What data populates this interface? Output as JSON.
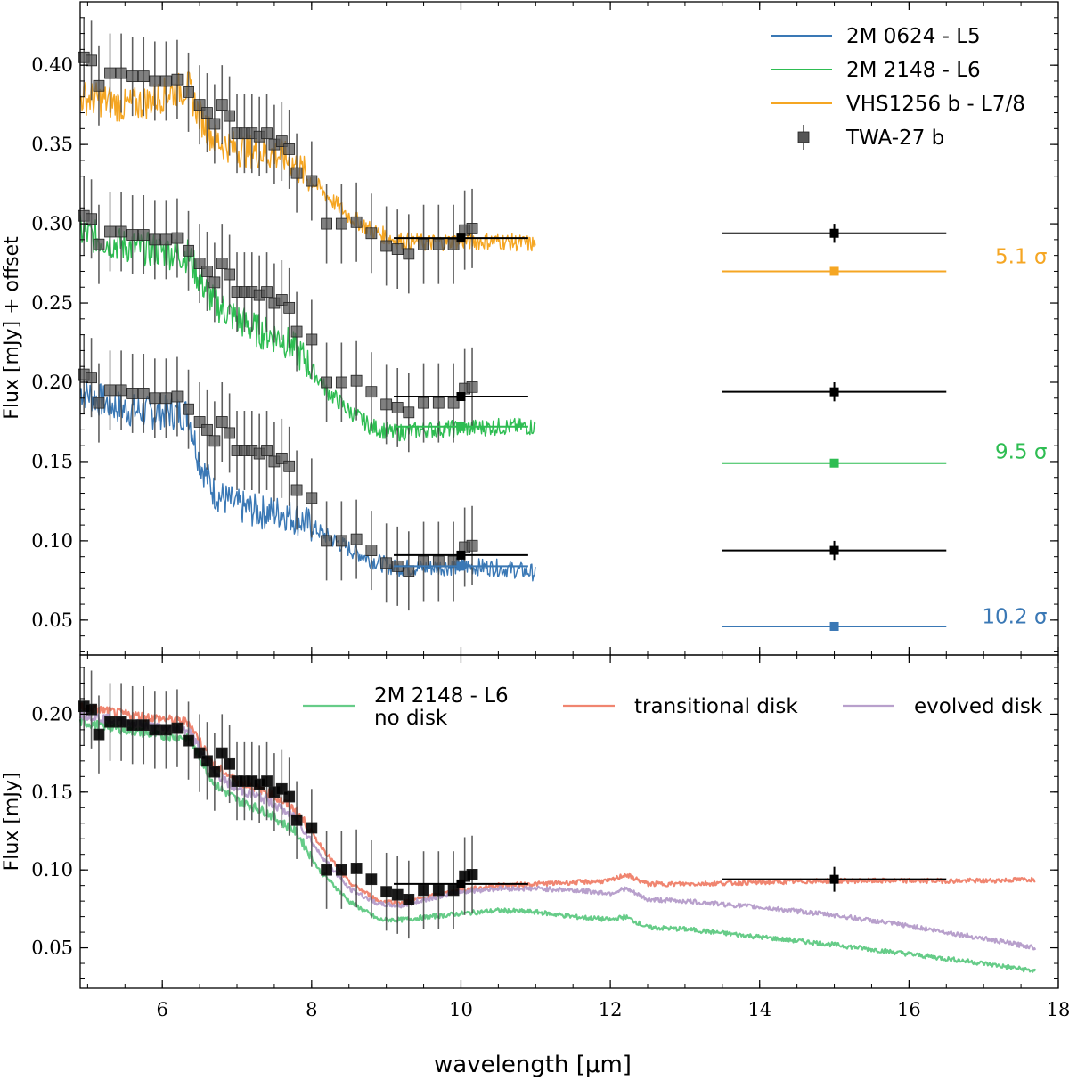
{
  "chart_data": [
    {
      "type": "line",
      "panel": "top",
      "ylabel": "Flux [mJy] + offset",
      "xlim": [
        4.9,
        18
      ],
      "ylim": [
        0.028,
        0.44
      ],
      "yticks": [
        "0.05",
        "0.10",
        "0.15",
        "0.20",
        "0.25",
        "0.30",
        "0.35",
        "0.40"
      ],
      "grid": false,
      "legend_position": "top-right",
      "colors": {
        "blue": "#3a78b5",
        "green": "#2ebd52",
        "orange": "#f5a623",
        "black": "#000000",
        "gray": "#555555"
      },
      "series": [
        {
          "name": "2M 0624 - L5",
          "color": "#3a78b5",
          "x": [
            4.9,
            5.2,
            5.5,
            5.8,
            6.1,
            6.35,
            6.5,
            6.7,
            7.0,
            7.3,
            7.6,
            7.9,
            8.2,
            8.5,
            8.8,
            9.1,
            9.5,
            10.0,
            10.5,
            11.0
          ],
          "y": [
            0.195,
            0.188,
            0.183,
            0.181,
            0.181,
            0.18,
            0.15,
            0.13,
            0.122,
            0.118,
            0.118,
            0.112,
            0.103,
            0.095,
            0.088,
            0.083,
            0.083,
            0.084,
            0.083,
            0.08
          ]
        },
        {
          "name": "2M 2148 - L6",
          "color": "#2ebd52",
          "x": [
            4.9,
            5.2,
            5.5,
            5.8,
            6.1,
            6.35,
            6.5,
            6.7,
            7.0,
            7.3,
            7.6,
            7.9,
            8.2,
            8.5,
            8.8,
            9.1,
            9.5,
            10.0,
            10.5,
            11.0
          ],
          "y": [
            0.295,
            0.29,
            0.286,
            0.284,
            0.282,
            0.28,
            0.265,
            0.25,
            0.24,
            0.232,
            0.228,
            0.215,
            0.195,
            0.182,
            0.172,
            0.168,
            0.17,
            0.171,
            0.172,
            0.172
          ]
        },
        {
          "name": "VHS1256 b - L7/8",
          "color": "#f5a623",
          "x": [
            4.9,
            5.2,
            5.5,
            5.8,
            6.1,
            6.35,
            6.5,
            6.7,
            7.0,
            7.3,
            7.6,
            7.9,
            8.2,
            8.5,
            8.8,
            9.1,
            9.5,
            10.0,
            10.5,
            11.0
          ],
          "y": [
            0.38,
            0.378,
            0.374,
            0.377,
            0.383,
            0.386,
            0.368,
            0.353,
            0.347,
            0.345,
            0.343,
            0.332,
            0.318,
            0.305,
            0.296,
            0.29,
            0.288,
            0.289,
            0.289,
            0.287
          ]
        },
        {
          "name": "TWA-27 b",
          "color": "#555555",
          "marker": "square",
          "offsets": [
            0.2,
            0.1,
            0.0
          ],
          "x": [
            4.95,
            5.05,
            5.15,
            5.3,
            5.45,
            5.6,
            5.75,
            5.9,
            6.05,
            6.2,
            6.35,
            6.5,
            6.6,
            6.7,
            6.8,
            6.9,
            7.0,
            7.1,
            7.2,
            7.3,
            7.4,
            7.5,
            7.6,
            7.7,
            7.8,
            8.0,
            8.2,
            8.4,
            8.6,
            8.8,
            9.0,
            9.15,
            9.3,
            9.5,
            9.7,
            9.9,
            10.05,
            10.15
          ],
          "y": [
            0.205,
            0.203,
            0.187,
            0.195,
            0.195,
            0.193,
            0.193,
            0.19,
            0.19,
            0.191,
            0.183,
            0.175,
            0.17,
            0.163,
            0.175,
            0.168,
            0.157,
            0.157,
            0.157,
            0.155,
            0.157,
            0.15,
            0.152,
            0.147,
            0.132,
            0.127,
            0.1,
            0.1,
            0.101,
            0.094,
            0.086,
            0.084,
            0.081,
            0.087,
            0.087,
            0.087,
            0.096,
            0.097
          ],
          "yerr": 0.025
        }
      ],
      "photometry": [
        {
          "label": "TWA-27 b (offset 0.2)",
          "x": 10.0,
          "xerr": 0.9,
          "y": 0.291,
          "color": "#000000"
        },
        {
          "label": "TWA-27 b (offset 0.1)",
          "x": 10.0,
          "xerr": 0.9,
          "y": 0.191,
          "color": "#000000"
        },
        {
          "label": "TWA-27 b (offset 0)",
          "x": 10.0,
          "xerr": 0.9,
          "y": 0.091,
          "color": "#000000"
        },
        {
          "label": "2M 2148 - L6",
          "x": 10.0,
          "xerr": 0.9,
          "y": 0.172,
          "color": "#2ebd52"
        },
        {
          "label": "2M 0624 - L5",
          "x": 10.0,
          "xerr": 0.9,
          "y": 0.084,
          "color": "#3a78b5"
        },
        {
          "label": "TWA-27 b 15um (offset 0.2)",
          "x": 15.0,
          "xerr": 1.5,
          "y": 0.294,
          "yerr": 0.006,
          "color": "#000000"
        },
        {
          "label": "VHS1256 b 15um",
          "x": 15.0,
          "xerr": 1.5,
          "y": 0.27,
          "color": "#f5a623"
        },
        {
          "label": "TWA-27 b 15um (offset 0.1)",
          "x": 15.0,
          "xerr": 1.5,
          "y": 0.194,
          "yerr": 0.006,
          "color": "#000000"
        },
        {
          "label": "2M 2148 15um",
          "x": 15.0,
          "xerr": 1.5,
          "y": 0.149,
          "color": "#2ebd52"
        },
        {
          "label": "TWA-27 b 15um (offset 0)",
          "x": 15.0,
          "xerr": 1.5,
          "y": 0.094,
          "yerr": 0.006,
          "color": "#000000"
        },
        {
          "label": "2M 0624 15um",
          "x": 15.0,
          "xerr": 1.5,
          "y": 0.046,
          "color": "#3a78b5"
        }
      ],
      "annotations": [
        {
          "text": "5.1 σ",
          "x": 17.85,
          "y": 0.275,
          "color": "#f5a623"
        },
        {
          "text": "9.5 σ",
          "x": 17.85,
          "y": 0.152,
          "color": "#2ebd52"
        },
        {
          "text": "10.2 σ",
          "x": 17.85,
          "y": 0.048,
          "color": "#3a78b5"
        }
      ]
    },
    {
      "type": "line",
      "panel": "bottom",
      "xlabel": "wavelength [μm]",
      "ylabel": "Flux [mJy]",
      "xlim": [
        4.9,
        18
      ],
      "ylim": [
        0.024,
        0.238
      ],
      "xticks": [
        "6",
        "8",
        "10",
        "12",
        "14",
        "16",
        "18"
      ],
      "yticks": [
        "0.05",
        "0.10",
        "0.15",
        "0.20"
      ],
      "grid": false,
      "legend_position": "top",
      "series": [
        {
          "name": "2M 2148 - L6",
          "name_line2": "no disk",
          "color": "#66cc88",
          "x": [
            4.9,
            5.5,
            6.0,
            6.35,
            6.7,
            7.0,
            7.4,
            7.8,
            8.1,
            8.5,
            8.9,
            9.2,
            9.6,
            10.0,
            10.5,
            11.0,
            11.5,
            12.0,
            12.2,
            12.5,
            13.0,
            14.0,
            15.0,
            16.0,
            17.0,
            17.7
          ],
          "y": [
            0.195,
            0.19,
            0.186,
            0.185,
            0.155,
            0.145,
            0.137,
            0.124,
            0.1,
            0.08,
            0.068,
            0.068,
            0.07,
            0.072,
            0.074,
            0.073,
            0.07,
            0.068,
            0.07,
            0.063,
            0.062,
            0.057,
            0.052,
            0.046,
            0.04,
            0.035
          ]
        },
        {
          "name": "transitional disk",
          "color": "#f08570",
          "x": [
            4.9,
            5.5,
            6.0,
            6.35,
            6.7,
            7.0,
            7.4,
            7.8,
            8.1,
            8.5,
            8.9,
            9.2,
            9.6,
            10.0,
            10.5,
            11.0,
            11.5,
            12.0,
            12.2,
            12.5,
            13.0,
            14.0,
            15.0,
            16.0,
            17.0,
            17.7
          ],
          "y": [
            0.205,
            0.2,
            0.197,
            0.195,
            0.167,
            0.157,
            0.15,
            0.138,
            0.117,
            0.092,
            0.08,
            0.079,
            0.083,
            0.087,
            0.09,
            0.091,
            0.092,
            0.093,
            0.097,
            0.091,
            0.091,
            0.092,
            0.093,
            0.093,
            0.093,
            0.094
          ]
        },
        {
          "name": "evolved disk",
          "color": "#b8a0cc",
          "x": [
            4.9,
            5.5,
            6.0,
            6.35,
            6.7,
            7.0,
            7.4,
            7.8,
            8.1,
            8.5,
            8.9,
            9.2,
            9.6,
            10.0,
            10.5,
            11.0,
            11.5,
            12.0,
            12.2,
            12.5,
            13.0,
            14.0,
            15.0,
            16.0,
            17.0,
            17.7
          ],
          "y": [
            0.2,
            0.195,
            0.191,
            0.19,
            0.162,
            0.152,
            0.145,
            0.133,
            0.111,
            0.088,
            0.078,
            0.077,
            0.082,
            0.086,
            0.088,
            0.088,
            0.087,
            0.085,
            0.088,
            0.081,
            0.08,
            0.076,
            0.071,
            0.064,
            0.056,
            0.05
          ]
        },
        {
          "name": "TWA-27 b",
          "color": "#000000",
          "marker": "square",
          "x": [
            4.95,
            5.05,
            5.15,
            5.3,
            5.45,
            5.6,
            5.75,
            5.9,
            6.05,
            6.2,
            6.35,
            6.5,
            6.6,
            6.7,
            6.8,
            6.9,
            7.0,
            7.1,
            7.2,
            7.3,
            7.4,
            7.5,
            7.6,
            7.7,
            7.8,
            8.0,
            8.2,
            8.4,
            8.6,
            8.8,
            9.0,
            9.15,
            9.3,
            9.5,
            9.7,
            9.9,
            10.05,
            10.15
          ],
          "y": [
            0.205,
            0.203,
            0.187,
            0.195,
            0.195,
            0.193,
            0.193,
            0.19,
            0.19,
            0.191,
            0.183,
            0.175,
            0.17,
            0.163,
            0.175,
            0.168,
            0.157,
            0.157,
            0.157,
            0.155,
            0.157,
            0.15,
            0.152,
            0.147,
            0.132,
            0.127,
            0.1,
            0.1,
            0.101,
            0.094,
            0.086,
            0.084,
            0.081,
            0.087,
            0.087,
            0.087,
            0.096,
            0.097
          ],
          "yerr": 0.025
        }
      ],
      "photometry": [
        {
          "label": "TWA-27 b 10um",
          "x": 10.0,
          "xerr": 0.9,
          "y": 0.091,
          "color": "#000000"
        },
        {
          "label": "TWA-27 b 15um",
          "x": 15.0,
          "xerr": 1.5,
          "y": 0.094,
          "yerr": 0.008,
          "color": "#000000"
        }
      ]
    }
  ]
}
